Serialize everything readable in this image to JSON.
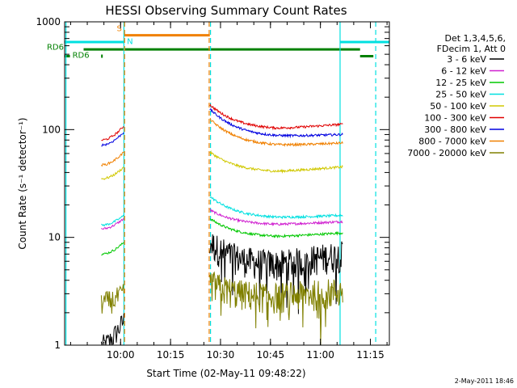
{
  "chart_data": {
    "type": "line",
    "title": "HESSI Observing Summary Count Rates",
    "xlabel": "Start Time (02-May-11 09:48:22)",
    "ylabel": "Count Rate (s⁻¹ detector⁻¹)",
    "y_scale": "log",
    "ylim": [
      1,
      1000
    ],
    "xlim_minutes": [
      -5.2,
      92.3
    ],
    "x_ticks": [
      "10:00",
      "10:15",
      "10:30",
      "10:45",
      "11:00",
      "11:15"
    ],
    "x_tick_minutes": [
      11.6,
      26.6,
      41.6,
      56.6,
      71.6,
      86.6
    ],
    "y_ticks": [
      "1",
      "10",
      "100",
      "1000"
    ],
    "y_tick_values": [
      1,
      10,
      100,
      1000
    ],
    "legend_header": [
      "Det 1,3,4,5,6,",
      "FDecim 1, Att 0"
    ],
    "legend_position": "right",
    "segments_minutes": [
      [
        5.8,
        12.6
      ],
      [
        38.4,
        78.3
      ]
    ],
    "series": [
      {
        "name": "3 - 6 keV",
        "color": "#000000",
        "pre": [
          1.0,
          1.7
        ],
        "post": [
          9,
          5.5,
          7
        ]
      },
      {
        "name": "6 - 12 keV",
        "color": "#d020d0",
        "pre": [
          12,
          15
        ],
        "post": [
          18,
          13,
          14
        ]
      },
      {
        "name": "12 - 25 keV",
        "color": "#00c800",
        "pre": [
          7,
          9
        ],
        "post": [
          15,
          10,
          11
        ]
      },
      {
        "name": "25 - 50 keV",
        "color": "#00e0e0",
        "pre": [
          13,
          16
        ],
        "post": [
          24,
          15,
          16
        ]
      },
      {
        "name": "50 - 100 keV",
        "color": "#d0c800",
        "pre": [
          35,
          45
        ],
        "post": [
          62,
          40,
          45
        ]
      },
      {
        "name": "100 - 300 keV",
        "color": "#e00000",
        "pre": [
          80,
          108
        ],
        "post": [
          170,
          100,
          112
        ]
      },
      {
        "name": "300 - 800 keV",
        "color": "#0000e0",
        "pre": [
          72,
          95
        ],
        "post": [
          155,
          85,
          90
        ]
      },
      {
        "name": "800 - 7000 keV",
        "color": "#f08000",
        "pre": [
          47,
          62
        ],
        "post": [
          125,
          70,
          75
        ]
      },
      {
        "name": "7000 - 20000 keV",
        "color": "#808000",
        "pre": [
          2.5,
          3.0
        ],
        "post": [
          3.8,
          2.8,
          3.2
        ]
      }
    ],
    "flags": [
      {
        "label": "S",
        "color": "#f08000",
        "from": 12.6,
        "to": 38.4,
        "value": 750
      },
      {
        "label": "N",
        "color": "#00e0e0",
        "from": -5.2,
        "to": 12.6,
        "value": 650
      },
      {
        "label": "",
        "color": "#00e0e0",
        "from": 77.5,
        "to": 92.3,
        "value": 650
      },
      {
        "label": "RD6",
        "color": "#008000",
        "from": 0.5,
        "to": 83.5,
        "value": 555
      },
      {
        "label": "RD6",
        "color": "#008000",
        "from": -5.2,
        "to": -3.6,
        "value": 480
      },
      {
        "label": "",
        "color": "#008000",
        "from": 83.5,
        "to": 87.5,
        "value": 480
      }
    ],
    "flag_labels": [
      {
        "text": "S",
        "color": "#f08000"
      },
      {
        "text": "N",
        "color": "#00e0e0"
      },
      {
        "text": "RD6",
        "color": "#008000"
      },
      {
        "text": "RD6",
        "color": "#008000"
      }
    ],
    "vlines": [
      {
        "x": -4.8,
        "color": "#00e0e0",
        "dash": false
      },
      {
        "x": 12.6,
        "color": "#00e0e0",
        "dash": false
      },
      {
        "x": 12.8,
        "color": "#f08000",
        "dash": true
      },
      {
        "x": 38.2,
        "color": "#f08000",
        "dash": true
      },
      {
        "x": 38.6,
        "color": "#00e0e0",
        "dash": true
      },
      {
        "x": 77.5,
        "color": "#00e0e0",
        "dash": false
      },
      {
        "x": 88.2,
        "color": "#00e0e0",
        "dash": true
      }
    ],
    "footer": "2-May-2011 18:46",
    "grid": false
  }
}
